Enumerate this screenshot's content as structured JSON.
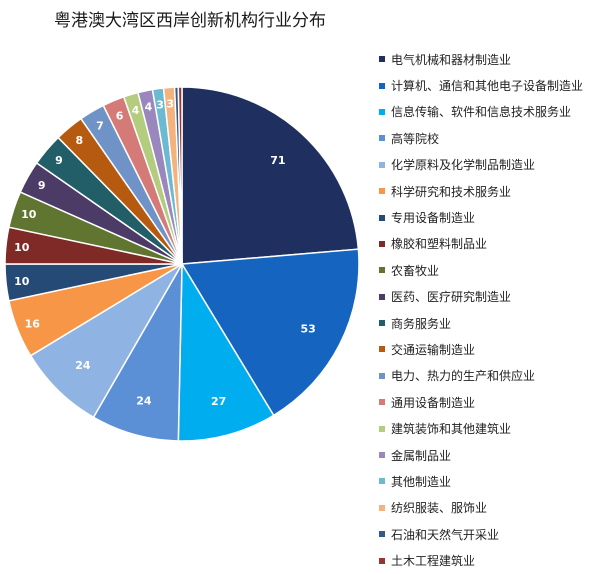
{
  "chart_data": {
    "type": "pie",
    "title": "粤港澳大湾区西岸创新机构行业分布",
    "legend_position": "right",
    "slices": [
      {
        "label": "电气机械和器材制造业",
        "value": 71,
        "color": "#1f3060"
      },
      {
        "label": "计算机、通信和其他电子设备制造业",
        "value": 53,
        "color": "#1565c0"
      },
      {
        "label": "信息传输、软件和信息技术服务业",
        "value": 27,
        "color": "#00adef"
      },
      {
        "label": "高等院校",
        "value": 24,
        "color": "#5b8fd6"
      },
      {
        "label": "化学原料及化学制品制造业",
        "value": 24,
        "color": "#8fb4e3"
      },
      {
        "label": "科学研究和技术服务业",
        "value": 16,
        "color": "#f79646"
      },
      {
        "label": "专用设备制造业",
        "value": 10,
        "color": "#254a75"
      },
      {
        "label": "橡胶和塑料制品业",
        "value": 10,
        "color": "#7f2a27"
      },
      {
        "label": "农畜牧业",
        "value": 10,
        "color": "#5f7530"
      },
      {
        "label": "医药、医疗研究制造业",
        "value": 9,
        "color": "#4b3b66"
      },
      {
        "label": "商务服务业",
        "value": 9,
        "color": "#215e68"
      },
      {
        "label": "交通运输制造业",
        "value": 8,
        "color": "#b55a0f"
      },
      {
        "label": "电力、热力的生产和供应业",
        "value": 7,
        "color": "#6f93c6"
      },
      {
        "label": "通用设备制造业",
        "value": 6,
        "color": "#d47a77"
      },
      {
        "label": "建筑装饰和其他建筑业",
        "value": 4,
        "color": "#b3cc7e"
      },
      {
        "label": "金属制品业",
        "value": 4,
        "color": "#9a87be"
      },
      {
        "label": "其他制造业",
        "value": 3,
        "color": "#6cbad1"
      },
      {
        "label": "纺织服装、服饰业",
        "value": 3,
        "color": "#f4b37d"
      },
      {
        "label": "石油和天然气开采业",
        "value": 1,
        "color": "#335b85"
      },
      {
        "label": "土木工程建筑业",
        "value": 1,
        "color": "#943634"
      }
    ]
  }
}
